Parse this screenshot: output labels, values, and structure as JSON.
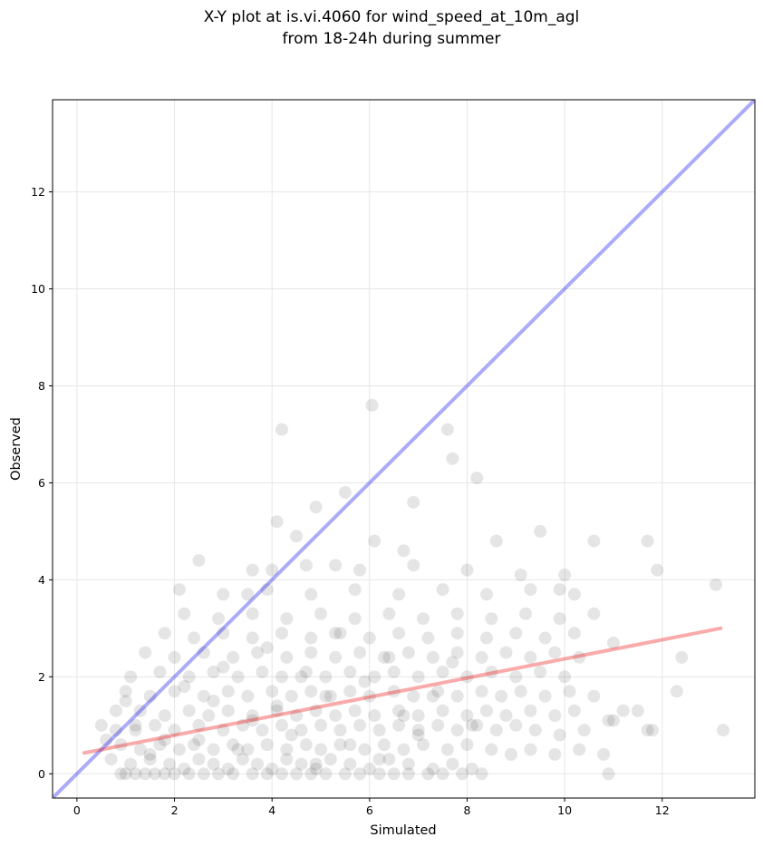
{
  "chart_data": {
    "type": "scatter",
    "title_lines": [
      "X-Y plot at is.vi.4060 for wind_speed_at_10m_agl",
      "from 18-24h during summer"
    ],
    "xlabel": "Simulated",
    "ylabel": "Observed",
    "xlim": [
      -0.5,
      13.9
    ],
    "ylim": [
      -0.5,
      13.9
    ],
    "xticks": [
      0,
      2,
      4,
      6,
      8,
      10,
      12
    ],
    "yticks": [
      0,
      2,
      4,
      6,
      8,
      10,
      12
    ],
    "grid": true,
    "colors": {
      "points": "#000000",
      "identity_line": "#0000ee",
      "fit_line": "#ee0000"
    },
    "reference_lines": [
      {
        "name": "1:1 line",
        "x": [
          -0.5,
          13.9
        ],
        "y": [
          -0.5,
          13.9
        ]
      },
      {
        "name": "linear fit",
        "x": [
          0.15,
          13.2
        ],
        "y": [
          0.43,
          3.0
        ]
      }
    ],
    "points": {
      "x": [
        0.9,
        1.0,
        1.2,
        1.4,
        1.6,
        1.8,
        2.0,
        2.3,
        2.6,
        2.9,
        3.2,
        3.6,
        3.9,
        4.2,
        4.5,
        4.8,
        5.1,
        5.5,
        5.8,
        6.2,
        6.5,
        6.8,
        7.2,
        7.5,
        7.9,
        8.3,
        0.7,
        1.1,
        1.5,
        1.9,
        2.2,
        2.5,
        2.8,
        3.1,
        3.4,
        3.7,
        4.0,
        4.3,
        4.6,
        4.9,
        5.2,
        5.6,
        6.0,
        6.4,
        6.8,
        7.3,
        7.7,
        8.1,
        0.6,
        0.9,
        1.3,
        1.7,
        2.1,
        2.4,
        2.8,
        3.2,
        3.5,
        3.9,
        4.3,
        4.7,
        5.0,
        5.4,
        5.9,
        6.3,
        6.7,
        7.1,
        7.6,
        8.0,
        8.5,
        8.9,
        9.3,
        9.8,
        10.3,
        10.8,
        0.5,
        0.8,
        1.2,
        1.6,
        2.0,
        2.5,
        3.0,
        3.4,
        3.8,
        4.2,
        4.6,
        5.0,
        5.4,
        5.8,
        6.2,
        6.6,
        7.0,
        7.4,
        7.8,
        8.2,
        8.6,
        9.0,
        9.4,
        9.9,
        10.4,
        11.0,
        0.8,
        1.3,
        1.8,
        2.3,
        2.7,
        3.1,
        3.6,
        4.1,
        4.5,
        4.9,
        5.3,
        5.7,
        6.1,
        6.6,
        7.0,
        7.5,
        8.0,
        8.4,
        8.8,
        9.3,
        9.8,
        10.2,
        1.0,
        1.5,
        2.0,
        2.6,
        3.1,
        3.5,
        4.0,
        4.4,
        4.8,
        5.2,
        5.6,
        6.0,
        6.5,
        6.9,
        7.4,
        7.8,
        8.3,
        8.7,
        9.1,
        9.6,
        10.1,
        10.6,
        11.2,
        1.1,
        1.7,
        2.3,
        2.8,
        3.3,
        3.8,
        4.2,
        4.7,
        5.1,
        5.6,
        6.1,
        6.5,
        7.0,
        7.5,
        8.0,
        8.5,
        9.0,
        9.5,
        10.0,
        1.4,
        2.0,
        2.6,
        3.2,
        3.7,
        4.3,
        4.8,
        5.3,
        5.8,
        6.3,
        6.8,
        7.3,
        7.8,
        8.3,
        8.8,
        9.3,
        9.8,
        10.3,
        11.0,
        1.8,
        2.4,
        3.0,
        3.6,
        4.2,
        4.8,
        5.4,
        6.0,
        6.6,
        7.2,
        7.8,
        8.4,
        9.0,
        9.6,
        10.2,
        2.2,
        2.9,
        3.6,
        4.3,
        5.0,
        5.7,
        6.4,
        7.1,
        7.8,
        8.5,
        9.2,
        9.9,
        10.6,
        2.1,
        3.0,
        3.9,
        4.8,
        5.7,
        6.6,
        7.5,
        8.4,
        9.3,
        10.2,
        2.5,
        3.6,
        4.7,
        5.8,
        6.9,
        8.0,
        9.1,
        10.0,
        11.5,
        4.1,
        4.5,
        4.9,
        6.05,
        7.6,
        7.7,
        8.2,
        3.5,
        4.0,
        5.3,
        6.1,
        6.7,
        9.5,
        10.6,
        11.7,
        11.9,
        13.1,
        4.2,
        5.5,
        6.9,
        8.6,
        9.9,
        12.3,
        12.4,
        10.9,
        13.25,
        11.7,
        11.8,
        10.9,
        1.0,
        1.2,
        1.5,
        1.8,
        2.2,
        2.5,
        2.8,
        3.0,
        3.3,
        3.6,
        3.9,
        4.1,
        4.4,
        4.6,
        4.9,
        5.1,
        5.3,
        5.6,
        5.9,
        6.2,
        6.4,
        6.7,
        7.0,
        7.3,
        7.7,
        8.1
      ],
      "y": [
        0.0,
        0.0,
        0.0,
        0.0,
        0.0,
        0.0,
        0.0,
        0.0,
        0.0,
        0.0,
        0.0,
        0.0,
        0.0,
        0.0,
        0.0,
        0.0,
        0.0,
        0.0,
        0.0,
        0.0,
        0.0,
        0.0,
        0.0,
        0.0,
        0.0,
        0.0,
        0.3,
        0.2,
        0.3,
        0.2,
        0.1,
        0.3,
        0.2,
        0.1,
        0.3,
        0.2,
        0.1,
        0.3,
        0.2,
        0.1,
        0.3,
        0.2,
        0.1,
        0.3,
        0.2,
        0.1,
        0.2,
        0.1,
        0.7,
        0.6,
        0.5,
        0.6,
        0.5,
        0.6,
        0.5,
        0.6,
        0.5,
        0.6,
        0.5,
        0.6,
        0.5,
        0.6,
        0.5,
        0.6,
        0.5,
        0.6,
        0.5,
        0.6,
        0.5,
        0.4,
        0.5,
        0.4,
        0.5,
        0.4,
        1.0,
        0.9,
        0.9,
        1.0,
        0.9,
        1.0,
        0.9,
        1.0,
        0.9,
        1.0,
        0.9,
        1.0,
        0.9,
        1.0,
        0.9,
        1.0,
        0.9,
        1.0,
        0.9,
        1.0,
        0.9,
        1.0,
        0.9,
        0.8,
        0.9,
        1.1,
        1.3,
        1.3,
        1.2,
        1.3,
        1.2,
        1.3,
        1.2,
        1.3,
        1.2,
        1.3,
        1.2,
        1.3,
        1.2,
        1.3,
        1.2,
        1.3,
        1.2,
        1.3,
        1.2,
        1.3,
        1.2,
        1.3,
        1.7,
        1.6,
        1.7,
        1.6,
        1.7,
        1.6,
        1.7,
        1.6,
        1.7,
        1.6,
        1.7,
        1.6,
        1.7,
        1.6,
        1.7,
        1.6,
        1.7,
        1.6,
        1.7,
        1.6,
        1.7,
        1.6,
        1.3,
        2.0,
        2.1,
        2.0,
        2.1,
        2.0,
        2.1,
        2.0,
        2.1,
        2.0,
        2.1,
        2.0,
        2.1,
        2.0,
        2.1,
        2.0,
        2.1,
        2.0,
        2.1,
        2.0,
        2.5,
        2.4,
        2.5,
        2.4,
        2.5,
        2.4,
        2.5,
        2.4,
        2.5,
        2.4,
        2.5,
        2.4,
        2.5,
        2.4,
        2.5,
        2.4,
        2.5,
        2.4,
        2.7,
        2.9,
        2.8,
        2.9,
        2.8,
        2.9,
        2.8,
        2.9,
        2.8,
        2.9,
        2.8,
        2.9,
        2.8,
        2.9,
        2.8,
        2.9,
        3.3,
        3.2,
        3.3,
        3.2,
        3.3,
        3.2,
        3.3,
        3.2,
        3.3,
        3.2,
        3.3,
        3.2,
        3.3,
        3.8,
        3.7,
        3.8,
        3.7,
        3.8,
        3.7,
        3.8,
        3.7,
        3.8,
        3.7,
        4.4,
        4.2,
        4.3,
        4.2,
        4.3,
        4.2,
        4.1,
        4.1,
        1.3,
        5.2,
        4.9,
        5.5,
        7.6,
        7.1,
        6.5,
        6.1,
        3.7,
        4.2,
        4.3,
        4.8,
        4.6,
        5.0,
        4.8,
        4.8,
        4.2,
        3.9,
        7.1,
        5.8,
        5.6,
        4.8,
        3.8,
        1.7,
        2.4,
        1.1,
        0.9,
        0.9,
        0.9,
        0.0,
        1.5,
        1.0,
        0.4,
        0.7,
        1.8,
        0.7,
        1.5,
        2.2,
        0.5,
        1.1,
        2.6,
        1.4,
        0.8,
        2.0,
        0.2,
        1.6,
        2.9,
        0.6,
        1.9,
        0.3,
        2.4,
        1.2,
        0.8,
        1.6,
        2.3,
        1.0
      ]
    }
  }
}
